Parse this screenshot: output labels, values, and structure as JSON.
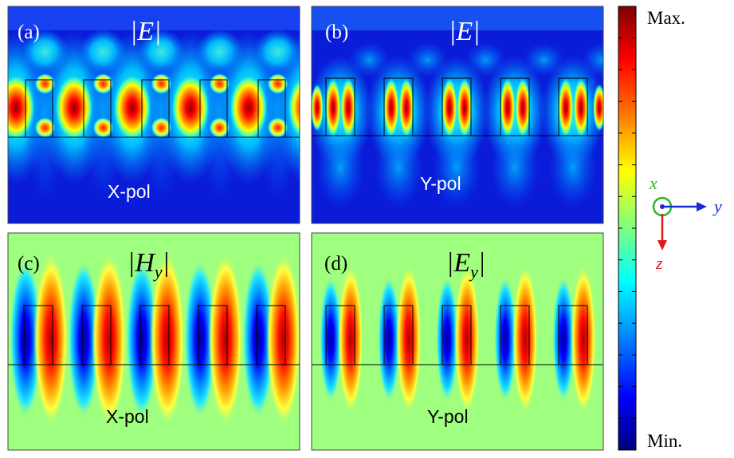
{
  "panels": {
    "a": {
      "tag": "(a)",
      "title": "|E|",
      "pol": "X-pol"
    },
    "b": {
      "tag": "(b)",
      "title": "|E|",
      "pol": "Y-pol"
    },
    "c": {
      "tag": "(c)",
      "title": "|H",
      "title_sub": "y",
      "title_end": "|",
      "pol": "X-pol"
    },
    "d": {
      "tag": "(d)",
      "title": "|E",
      "title_sub": "y",
      "title_end": "|",
      "pol": "Y-pol"
    }
  },
  "colorbar": {
    "max_label": "Max.",
    "min_label": "Min."
  },
  "axes": {
    "x_label": "x",
    "y_label": "y",
    "z_label": "z",
    "x_color": "#22bb22",
    "y_color": "#1a2bd6",
    "z_color": "#e01a1a"
  },
  "colormap": [
    "#00007f",
    "#0000ff",
    "#007fff",
    "#00ffff",
    "#7fff7f",
    "#ffff00",
    "#ff7f00",
    "#ff0000",
    "#7f0000"
  ]
}
